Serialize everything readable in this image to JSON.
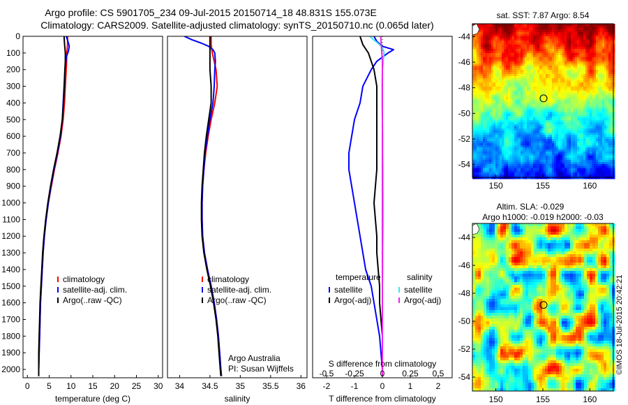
{
  "header": {
    "line1": "Argo profile: CS 5901705_234 09-Jul-2015 20150714_18 48.831S 155.073E",
    "line2": "Climatology: CARS2009. Satellite-adjusted climatology: synTS_20150710.nc (0.065d later)"
  },
  "colors": {
    "climatology": "#ff0000",
    "satellite": "#0000ff",
    "argo": "#000000",
    "salinity_satellite": "#33e6ee",
    "salinity_argo": "#ee22ee"
  },
  "chart_data": [
    {
      "type": "line",
      "panel": "temperature",
      "xlabel": "temperature (deg C)",
      "ylabel": "",
      "xlim": [
        -1,
        31
      ],
      "ylim": [
        2050,
        0
      ],
      "xticks": [
        0,
        5,
        10,
        15,
        20,
        25,
        30
      ],
      "yticks": [
        0,
        100,
        200,
        300,
        400,
        500,
        600,
        700,
        800,
        900,
        1000,
        1100,
        1200,
        1300,
        1400,
        1500,
        1600,
        1700,
        1800,
        1900,
        2000
      ],
      "legend": {
        "position": "lower-right",
        "entries": [
          "climatology",
          "satellite-adj. clim.",
          "Argo(..raw -QC)"
        ]
      },
      "series": [
        {
          "name": "climatology",
          "depth": [
            0,
            50,
            80,
            100,
            150,
            200,
            300,
            400,
            500,
            600,
            700,
            800,
            900,
            1000,
            1100,
            1200,
            1300,
            1400,
            1500,
            1600,
            1700,
            1800,
            1900,
            2000,
            2040
          ],
          "values": [
            9.2,
            9.2,
            9.1,
            9.0,
            9.0,
            8.9,
            8.7,
            8.5,
            8.2,
            7.7,
            7.0,
            6.2,
            5.5,
            4.8,
            4.3,
            3.9,
            3.6,
            3.4,
            3.2,
            3.0,
            2.9,
            2.8,
            2.7,
            2.6,
            2.6
          ]
        },
        {
          "name": "satellite-adj. clim.",
          "depth": [
            0,
            30,
            60,
            90,
            120,
            150,
            200,
            300,
            400,
            500,
            600,
            700,
            800,
            900,
            1000,
            1100,
            1200,
            1300,
            1400,
            1500,
            1600,
            1700,
            1800,
            1900,
            2000,
            2040
          ],
          "values": [
            8.9,
            9.3,
            9.6,
            9.4,
            9.0,
            8.8,
            8.6,
            8.4,
            8.2,
            8.0,
            7.6,
            6.9,
            6.1,
            5.4,
            4.8,
            4.3,
            3.9,
            3.6,
            3.4,
            3.2,
            3.0,
            2.9,
            2.8,
            2.7,
            2.6,
            2.6
          ]
        },
        {
          "name": "Argo(..raw -QC)",
          "depth": [
            0,
            40,
            70,
            100,
            150,
            200,
            300,
            400,
            500,
            600,
            700,
            800,
            900,
            1000,
            1100,
            1200,
            1300,
            1400,
            1500,
            1600,
            1700,
            1800,
            1900,
            2000,
            2040
          ],
          "values": [
            8.4,
            8.5,
            8.6,
            8.7,
            8.7,
            8.6,
            8.5,
            8.3,
            8.0,
            7.5,
            6.8,
            6.0,
            5.3,
            4.7,
            4.2,
            3.8,
            3.5,
            3.3,
            3.1,
            2.9,
            2.8,
            2.7,
            2.6,
            2.6,
            2.6
          ]
        }
      ]
    },
    {
      "type": "line",
      "panel": "salinity",
      "xlabel": "salinity",
      "ylabel": "",
      "xlim": [
        33.8,
        36.1
      ],
      "ylim": [
        2050,
        0
      ],
      "xticks": [
        34,
        34.5,
        35,
        35.5,
        36
      ],
      "legend": {
        "position": "lower-right",
        "entries": [
          "climatology",
          "satellite-adj. clim.",
          "Argo(..raw -QC)"
        ]
      },
      "annotation": [
        "Argo Australia",
        "PI: Susan Wijffels"
      ],
      "series": [
        {
          "name": "climatology",
          "depth": [
            0,
            50,
            100,
            200,
            300,
            400,
            500,
            600,
            700,
            800,
            900,
            1000,
            1100,
            1200,
            1300,
            1400,
            1500,
            1600,
            1700,
            1800,
            1900,
            2000,
            2040
          ],
          "values": [
            34.52,
            34.52,
            34.54,
            34.6,
            34.62,
            34.58,
            34.52,
            34.47,
            34.43,
            34.4,
            34.38,
            34.37,
            34.37,
            34.38,
            34.41,
            34.46,
            34.52,
            34.57,
            34.61,
            34.64,
            34.66,
            34.68,
            34.69
          ]
        },
        {
          "name": "satellite-adj. clim.",
          "depth": [
            0,
            20,
            40,
            60,
            80,
            100,
            150,
            200,
            300,
            400,
            500,
            600,
            700,
            800,
            900,
            1000,
            1100,
            1200,
            1300,
            1400,
            1500,
            1600,
            1700,
            1800,
            1900,
            2000,
            2040
          ],
          "values": [
            34.08,
            34.2,
            34.35,
            34.48,
            34.55,
            34.58,
            34.59,
            34.58,
            34.57,
            34.55,
            34.5,
            34.46,
            34.42,
            34.4,
            34.38,
            34.37,
            34.37,
            34.38,
            34.41,
            34.46,
            34.52,
            34.57,
            34.61,
            34.64,
            34.66,
            34.68,
            34.69
          ]
        },
        {
          "name": "Argo(..raw -QC)",
          "depth": [
            0,
            50,
            100,
            200,
            300,
            400,
            500,
            600,
            700,
            800,
            900,
            1000,
            1100,
            1200,
            1300,
            1400,
            1500,
            1600,
            1700,
            1800,
            1900,
            2000,
            2040
          ],
          "values": [
            34.5,
            34.5,
            34.5,
            34.5,
            34.52,
            34.52,
            34.48,
            34.44,
            34.41,
            34.39,
            34.37,
            34.36,
            34.36,
            34.37,
            34.4,
            34.45,
            34.51,
            34.56,
            34.6,
            34.63,
            34.65,
            34.67,
            34.68
          ]
        }
      ]
    },
    {
      "type": "line",
      "panel": "difference",
      "xlabel": "T difference from climatology",
      "x2label": "S difference from climatology",
      "xlim": [
        -2.5,
        2.5
      ],
      "ylim": [
        2050,
        0
      ],
      "xticks": [
        -2,
        -1,
        0,
        1,
        2
      ],
      "x2ticks": [
        -0.5,
        -0.25,
        0,
        0.25,
        0.5
      ],
      "legend": {
        "position": "lower-center",
        "headers": [
          "temperature",
          "salinity"
        ],
        "entries": [
          "satellite",
          "Argo(-adj)",
          "satellite",
          "Argo(-adj)"
        ]
      },
      "series": [
        {
          "name": "temperature satellite",
          "depth": [
            0,
            30,
            60,
            80,
            100,
            150,
            200,
            300,
            400,
            500,
            600,
            700,
            800,
            900,
            1000,
            1100,
            1200,
            1300,
            1400,
            1500,
            1600,
            1700,
            1800,
            1900,
            2000,
            2040
          ],
          "values": [
            -0.3,
            -0.2,
            0.0,
            0.4,
            0.2,
            -0.2,
            -0.4,
            -0.7,
            -0.8,
            -1.0,
            -1.1,
            -1.2,
            -1.2,
            -1.1,
            -1.0,
            -0.9,
            -0.8,
            -0.7,
            -0.6,
            -0.4,
            -0.3,
            -0.2,
            -0.1,
            -0.05,
            0.0,
            0.0
          ]
        },
        {
          "name": "temperature Argo(-adj)",
          "depth": [
            0,
            50,
            100,
            200,
            300,
            400,
            500,
            600,
            700,
            800,
            900,
            1000,
            1100,
            1200,
            1300,
            1400,
            1500,
            1600,
            1700,
            1800,
            1900,
            2000,
            2040
          ],
          "values": [
            -0.8,
            -0.7,
            -0.5,
            -0.3,
            -0.2,
            -0.2,
            -0.2,
            -0.2,
            -0.2,
            -0.2,
            -0.25,
            -0.3,
            -0.25,
            -0.2,
            -0.2,
            -0.15,
            -0.1,
            -0.1,
            -0.05,
            0.0,
            0.0,
            0.0,
            0.0
          ]
        },
        {
          "name": "salinity satellite",
          "depth": [
            0,
            20,
            40,
            60,
            80,
            100,
            150,
            200,
            300,
            400,
            500,
            600,
            700,
            800,
            900,
            1000,
            1100,
            1200,
            1300,
            1400,
            1500,
            1600,
            1700,
            1800,
            1900,
            2000,
            2040
          ],
          "values": [
            -0.44,
            -0.32,
            -0.17,
            -0.04,
            0.03,
            0.06,
            0.03,
            0.0,
            -0.01,
            -0.01,
            0.0,
            0.01,
            0.01,
            0.02,
            0.02,
            0.03,
            0.03,
            0.02,
            0.01,
            0.01,
            0.0,
            0.0,
            0.0,
            0.0,
            0.0,
            0.0,
            0.0
          ]
        },
        {
          "name": "salinity Argo(-adj)",
          "depth": [
            0,
            50,
            100,
            150,
            200,
            300,
            400,
            500,
            600,
            700,
            800,
            900,
            1000,
            1100,
            1200,
            1300,
            1400,
            1500,
            1600,
            1700,
            1800,
            1900,
            2000,
            2040
          ],
          "values": [
            -0.06,
            -0.04,
            -0.02,
            0.0,
            0.0,
            0.0,
            0.0,
            0.0,
            0.0,
            0.0,
            0.0,
            0.0,
            0.0,
            0.0,
            0.0,
            0.0,
            0.0,
            0.0,
            0.0,
            0.0,
            0.0,
            0.0,
            0.0,
            0.0
          ]
        }
      ]
    },
    {
      "type": "heatmap",
      "panel": "sst_map",
      "title": "sat. SST: 7.87  Argo: 8.54",
      "xlim": [
        147.5,
        162.5
      ],
      "ylim": [
        -55,
        -43
      ],
      "xticks": [
        150,
        155,
        160
      ],
      "yticks": [
        -44,
        -46,
        -48,
        -50,
        -52,
        -54
      ],
      "marker": {
        "lon": 155.073,
        "lat": -48.831
      }
    },
    {
      "type": "heatmap",
      "panel": "sla_map",
      "title": "Altim. SLA: -0.029",
      "subtitle": "Argo h1000: -0.019 h2000: -0.03",
      "xlim": [
        147.5,
        162.5
      ],
      "ylim": [
        -55,
        -43
      ],
      "xticks": [
        150,
        155,
        160
      ],
      "yticks": [
        -44,
        -46,
        -48,
        -50,
        -52,
        -54
      ],
      "marker": {
        "lon": 155.073,
        "lat": -48.831
      }
    }
  ],
  "credit": "©IMOS 18-Jul-2015 20:42:21"
}
